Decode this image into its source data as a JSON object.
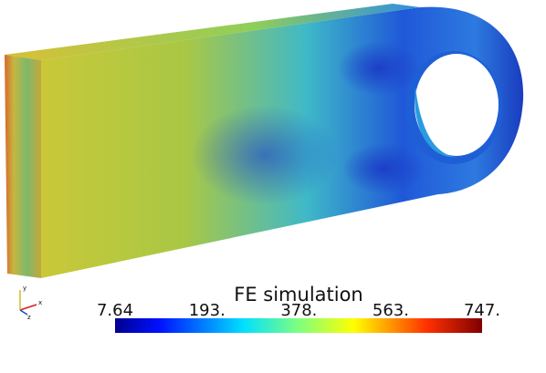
{
  "colorbar": {
    "title": "FE simulation",
    "lim": [
      7.64,
      747
    ],
    "ticks": [
      7.64,
      {
        "value": 193,
        "label": "193."
      },
      {
        "value": 378,
        "label": "378."
      },
      {
        "value": 563,
        "label": "563."
      },
      {
        "value": 747,
        "label": "747."
      }
    ]
  },
  "axes": {
    "x": "x",
    "y": "y",
    "z": "z"
  }
}
